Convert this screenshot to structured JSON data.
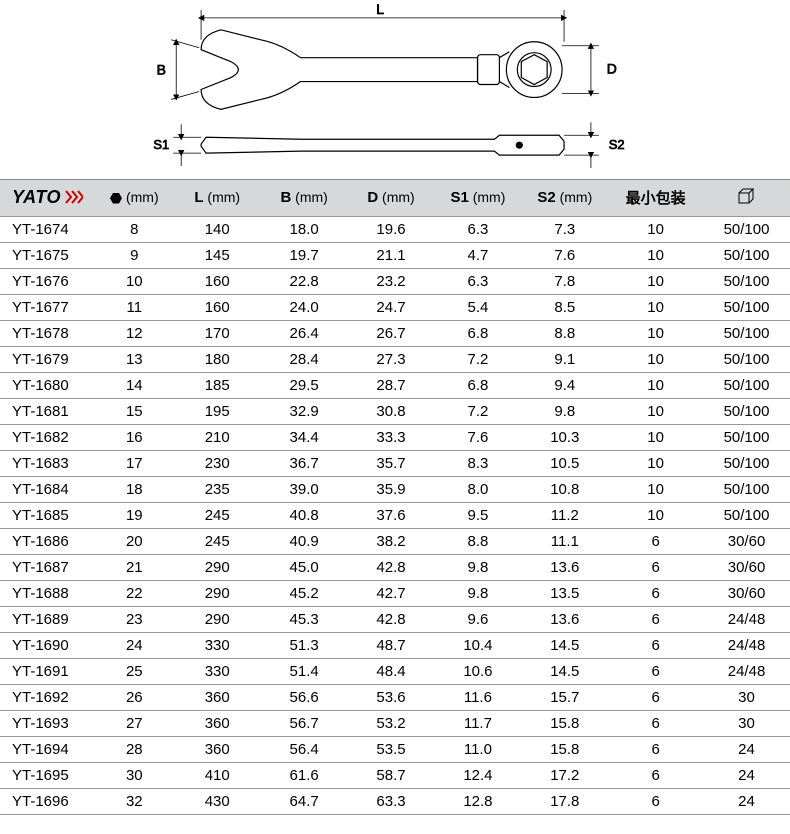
{
  "diagram": {
    "labels": {
      "L": "L",
      "B": "B",
      "D": "D",
      "S1": "S1",
      "S2": "S2"
    },
    "stroke": "#000000",
    "stroke_width": 1.2,
    "dim_stroke": "#000000",
    "dim_stroke_width": 0.8
  },
  "header": {
    "brand": "YATO",
    "columns": [
      {
        "key": "code",
        "label": "",
        "unit": ""
      },
      {
        "key": "hex",
        "label": "HEX",
        "unit": "(mm)"
      },
      {
        "key": "L",
        "label": "L",
        "unit": "(mm)"
      },
      {
        "key": "B",
        "label": "B",
        "unit": "(mm)"
      },
      {
        "key": "D",
        "label": "D",
        "unit": "(mm)"
      },
      {
        "key": "S1",
        "label": "S1",
        "unit": "(mm)"
      },
      {
        "key": "S2",
        "label": "S2",
        "unit": "(mm)"
      },
      {
        "key": "minpack",
        "label": "最小包装",
        "unit": ""
      },
      {
        "key": "box",
        "label": "",
        "unit": ""
      }
    ]
  },
  "rows": [
    {
      "code": "YT-1674",
      "hex": "8",
      "L": "140",
      "B": "18.0",
      "D": "19.6",
      "S1": "6.3",
      "S2": "7.3",
      "minpack": "10",
      "box": "50/100"
    },
    {
      "code": "YT-1675",
      "hex": "9",
      "L": "145",
      "B": "19.7",
      "D": "21.1",
      "S1": "4.7",
      "S2": "7.6",
      "minpack": "10",
      "box": "50/100"
    },
    {
      "code": "YT-1676",
      "hex": "10",
      "L": "160",
      "B": "22.8",
      "D": "23.2",
      "S1": "6.3",
      "S2": "7.8",
      "minpack": "10",
      "box": "50/100"
    },
    {
      "code": "YT-1677",
      "hex": "11",
      "L": "160",
      "B": "24.0",
      "D": "24.7",
      "S1": "5.4",
      "S2": "8.5",
      "minpack": "10",
      "box": "50/100"
    },
    {
      "code": "YT-1678",
      "hex": "12",
      "L": "170",
      "B": "26.4",
      "D": "26.7",
      "S1": "6.8",
      "S2": "8.8",
      "minpack": "10",
      "box": "50/100"
    },
    {
      "code": "YT-1679",
      "hex": "13",
      "L": "180",
      "B": "28.4",
      "D": "27.3",
      "S1": "7.2",
      "S2": "9.1",
      "minpack": "10",
      "box": "50/100"
    },
    {
      "code": "YT-1680",
      "hex": "14",
      "L": "185",
      "B": "29.5",
      "D": "28.7",
      "S1": "6.8",
      "S2": "9.4",
      "minpack": "10",
      "box": "50/100"
    },
    {
      "code": "YT-1681",
      "hex": "15",
      "L": "195",
      "B": "32.9",
      "D": "30.8",
      "S1": "7.2",
      "S2": "9.8",
      "minpack": "10",
      "box": "50/100"
    },
    {
      "code": "YT-1682",
      "hex": "16",
      "L": "210",
      "B": "34.4",
      "D": "33.3",
      "S1": "7.6",
      "S2": "10.3",
      "minpack": "10",
      "box": "50/100"
    },
    {
      "code": "YT-1683",
      "hex": "17",
      "L": "230",
      "B": "36.7",
      "D": "35.7",
      "S1": "8.3",
      "S2": "10.5",
      "minpack": "10",
      "box": "50/100"
    },
    {
      "code": "YT-1684",
      "hex": "18",
      "L": "235",
      "B": "39.0",
      "D": "35.9",
      "S1": "8.0",
      "S2": "10.8",
      "minpack": "10",
      "box": "50/100"
    },
    {
      "code": "YT-1685",
      "hex": "19",
      "L": "245",
      "B": "40.8",
      "D": "37.6",
      "S1": "9.5",
      "S2": "11.2",
      "minpack": "10",
      "box": "50/100"
    },
    {
      "code": "YT-1686",
      "hex": "20",
      "L": "245",
      "B": "40.9",
      "D": "38.2",
      "S1": "8.8",
      "S2": "11.1",
      "minpack": "6",
      "box": "30/60"
    },
    {
      "code": "YT-1687",
      "hex": "21",
      "L": "290",
      "B": "45.0",
      "D": "42.8",
      "S1": "9.8",
      "S2": "13.6",
      "minpack": "6",
      "box": "30/60"
    },
    {
      "code": "YT-1688",
      "hex": "22",
      "L": "290",
      "B": "45.2",
      "D": "42.7",
      "S1": "9.8",
      "S2": "13.5",
      "minpack": "6",
      "box": "30/60"
    },
    {
      "code": "YT-1689",
      "hex": "23",
      "L": "290",
      "B": "45.3",
      "D": "42.8",
      "S1": "9.6",
      "S2": "13.6",
      "minpack": "6",
      "box": "24/48"
    },
    {
      "code": "YT-1690",
      "hex": "24",
      "L": "330",
      "B": "51.3",
      "D": "48.7",
      "S1": "10.4",
      "S2": "14.5",
      "minpack": "6",
      "box": "24/48"
    },
    {
      "code": "YT-1691",
      "hex": "25",
      "L": "330",
      "B": "51.4",
      "D": "48.4",
      "S1": "10.6",
      "S2": "14.5",
      "minpack": "6",
      "box": "24/48"
    },
    {
      "code": "YT-1692",
      "hex": "26",
      "L": "360",
      "B": "56.6",
      "D": "53.6",
      "S1": "11.6",
      "S2": "15.7",
      "minpack": "6",
      "box": "30"
    },
    {
      "code": "YT-1693",
      "hex": "27",
      "L": "360",
      "B": "56.7",
      "D": "53.2",
      "S1": "11.7",
      "S2": "15.8",
      "minpack": "6",
      "box": "30"
    },
    {
      "code": "YT-1694",
      "hex": "28",
      "L": "360",
      "B": "56.4",
      "D": "53.5",
      "S1": "11.0",
      "S2": "15.8",
      "minpack": "6",
      "box": "24"
    },
    {
      "code": "YT-1695",
      "hex": "30",
      "L": "410",
      "B": "61.6",
      "D": "58.7",
      "S1": "12.4",
      "S2": "17.2",
      "minpack": "6",
      "box": "24"
    },
    {
      "code": "YT-1696",
      "hex": "32",
      "L": "430",
      "B": "64.7",
      "D": "63.3",
      "S1": "12.8",
      "S2": "17.8",
      "minpack": "6",
      "box": "24"
    }
  ],
  "styles": {
    "header_bg": "#d7d8d9",
    "row_border": "#999999",
    "text_color": "#000000",
    "font_size_cell": 15,
    "font_size_header": 15
  }
}
